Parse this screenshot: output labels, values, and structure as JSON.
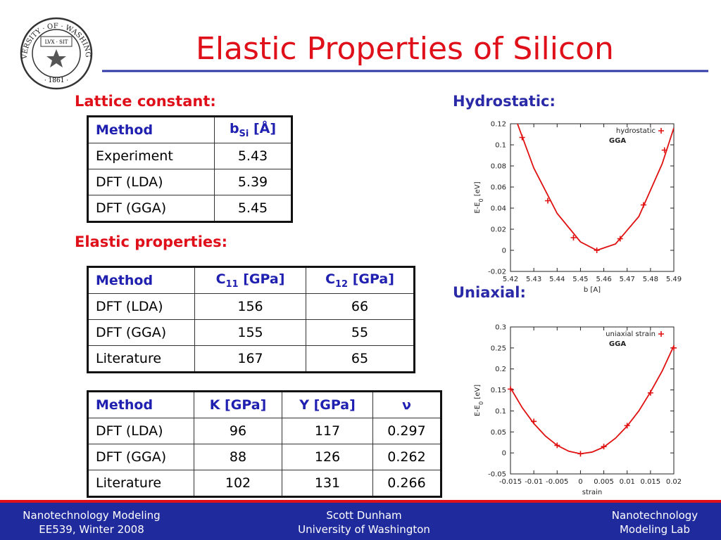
{
  "title": "Elastic Properties of Silicon",
  "logo": {
    "ring": "UNIVERSITY · OF · WASHINGTON",
    "year": "· 1861 ·",
    "motto": "LVX · SIT"
  },
  "headings": {
    "lattice": "Lattice constant:",
    "elastic": "Elastic properties:",
    "hydrostatic": "Hydrostatic:",
    "uniaxial": "Uniaxial:"
  },
  "tables": [
    {
      "header": [
        "Method",
        {
          "base": "b",
          "sub": "Si",
          "rest": " [Å]"
        }
      ],
      "rows": [
        [
          "Experiment",
          "5.43"
        ],
        [
          "DFT (LDA)",
          "5.39"
        ],
        [
          "DFT (GGA)",
          "5.45"
        ]
      ]
    },
    {
      "header": [
        "Method",
        {
          "base": "C",
          "sub": "11",
          "rest": " [GPa]"
        },
        {
          "base": "C",
          "sub": "12",
          "rest": " [GPa]"
        }
      ],
      "rows": [
        [
          "DFT (LDA)",
          "156",
          "66"
        ],
        [
          "DFT (GGA)",
          "155",
          "55"
        ],
        [
          "Literature",
          "167",
          "65"
        ]
      ]
    },
    {
      "header": [
        "Method",
        "K [GPa]",
        "Y [GPa]",
        "ν"
      ],
      "rows": [
        [
          "DFT (LDA)",
          "96",
          "117",
          "0.297"
        ],
        [
          "DFT (GGA)",
          "88",
          "126",
          "0.262"
        ],
        [
          "Literature",
          "102",
          "131",
          "0.266"
        ]
      ]
    }
  ],
  "chart_data": [
    {
      "type": "scatter",
      "x_label": "b [A]",
      "y_label": {
        "base": "E-E",
        "sub": "0",
        "rest": " [eV]"
      },
      "annotation": "GGA",
      "xlim": [
        5.42,
        5.49
      ],
      "xticks": [
        5.42,
        5.43,
        5.44,
        5.45,
        5.46,
        5.47,
        5.48,
        5.49
      ],
      "ylim": [
        -0.02,
        0.12
      ],
      "yticks": [
        -0.02,
        0,
        0.02,
        0.04,
        0.06,
        0.08,
        0.1,
        0.12
      ],
      "series": [
        {
          "name": "hydrostatic",
          "color": "#e01010",
          "marker": "+",
          "x": [
            5.425,
            5.436,
            5.447,
            5.457,
            5.467,
            5.477,
            5.486
          ],
          "values": [
            0.107,
            0.047,
            0.012,
            0.0,
            0.011,
            0.043,
            0.095
          ]
        },
        {
          "color": "#e01010",
          "x": [
            5.423,
            5.43,
            5.44,
            5.45,
            5.457,
            5.465,
            5.475,
            5.485,
            5.49
          ],
          "values": [
            0.12,
            0.078,
            0.035,
            0.008,
            0.0,
            0.006,
            0.032,
            0.082,
            0.116
          ]
        }
      ]
    },
    {
      "type": "scatter",
      "x_label": "strain",
      "y_label": {
        "base": "E-E",
        "sub": "0",
        "rest": " [eV]"
      },
      "annotation": "GGA",
      "xlim": [
        -0.015,
        0.02
      ],
      "xticks": [
        -0.015,
        -0.01,
        -0.005,
        0,
        0.005,
        0.01,
        0.015,
        0.02
      ],
      "ylim": [
        -0.05,
        0.3
      ],
      "yticks": [
        -0.05,
        0,
        0.05,
        0.1,
        0.15,
        0.2,
        0.25,
        0.3
      ],
      "series": [
        {
          "name": "uniaxial strain",
          "color": "#e01010",
          "marker": "+",
          "x": [
            -0.015,
            -0.01,
            -0.005,
            0,
            0.005,
            0.01,
            0.015,
            0.02
          ],
          "values": [
            0.152,
            0.075,
            0.018,
            -0.002,
            0.015,
            0.065,
            0.143,
            0.25
          ]
        },
        {
          "color": "#e01010",
          "x": [
            -0.015,
            -0.0125,
            -0.01,
            -0.0075,
            -0.005,
            -0.0025,
            0,
            0.0025,
            0.005,
            0.0075,
            0.01,
            0.0125,
            0.015,
            0.0175,
            0.02
          ],
          "values": [
            0.155,
            0.108,
            0.07,
            0.04,
            0.018,
            0.004,
            -0.002,
            0.002,
            0.014,
            0.035,
            0.064,
            0.1,
            0.145,
            0.195,
            0.255
          ]
        }
      ]
    }
  ],
  "footer": {
    "left": [
      "Nanotechnology Modeling",
      "EE539, Winter 2008"
    ],
    "center": [
      "Scott Dunham",
      "University of Washington"
    ],
    "right": [
      "Nanotechnology",
      "Modeling Lab"
    ]
  }
}
